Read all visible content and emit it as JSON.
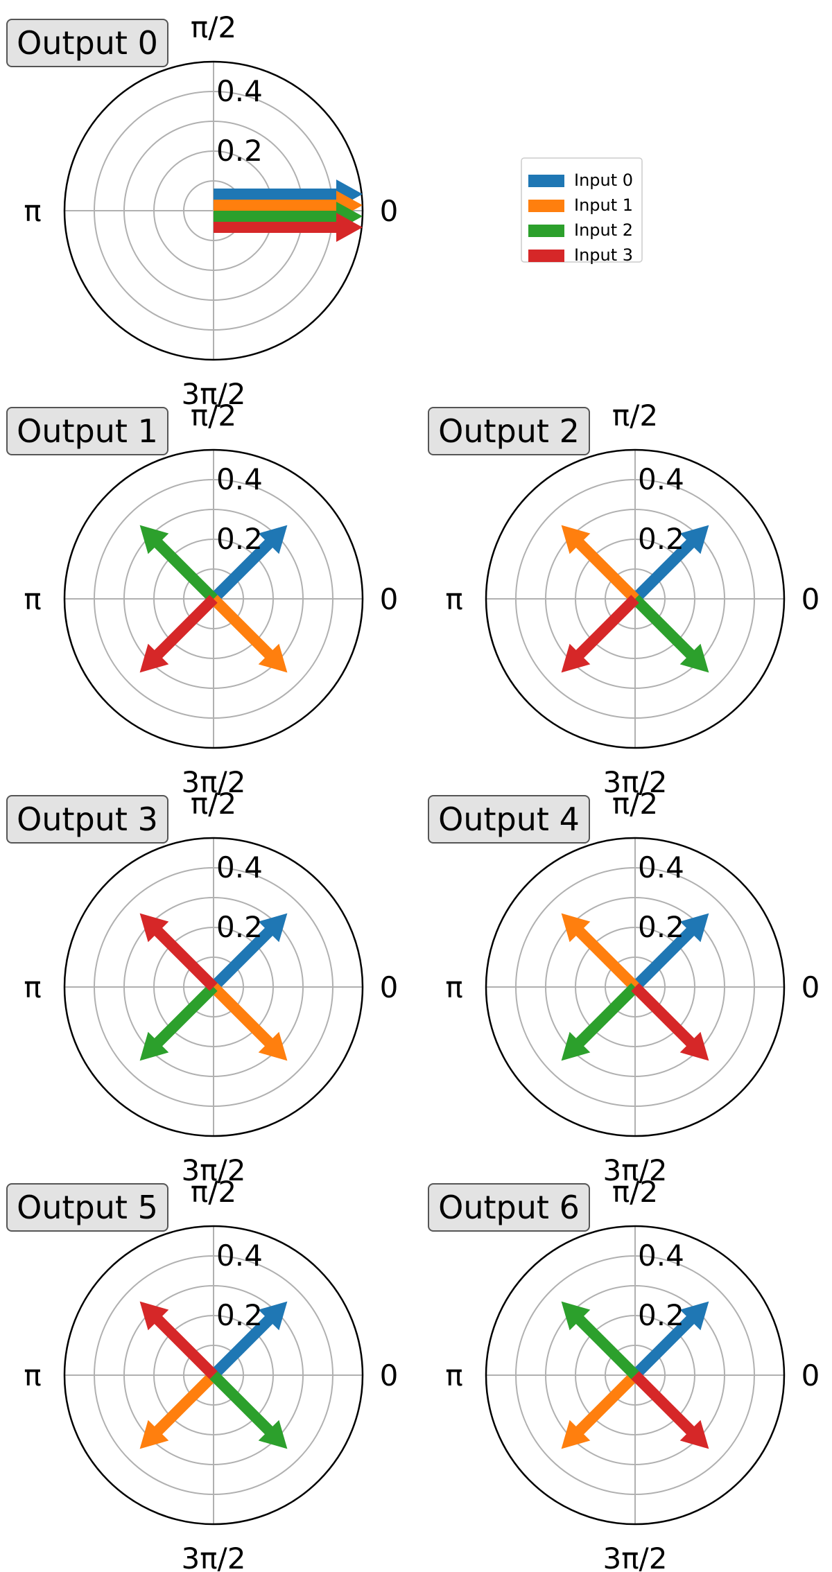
{
  "chart_data": {
    "type": "polar-arrows",
    "angle_ticks": [
      "0",
      "π/2",
      "π",
      "3π/2"
    ],
    "radial_ticks": [
      "0.2",
      "0.4"
    ],
    "rlim": [
      0,
      0.5
    ],
    "grid": true,
    "legend": {
      "placement": "right-of-first-panel",
      "entries": [
        {
          "label": "Input 0",
          "color": "#1f77b4"
        },
        {
          "label": "Input 1",
          "color": "#ff7f0e"
        },
        {
          "label": "Input 2",
          "color": "#2ca02c"
        },
        {
          "label": "Input 3",
          "color": "#d62728"
        }
      ]
    },
    "panels": [
      {
        "title": "Output 0",
        "vectors": [
          {
            "series": 0,
            "angle_deg": 0,
            "magnitude": 0.5
          },
          {
            "series": 1,
            "angle_deg": 0,
            "magnitude": 0.5
          },
          {
            "series": 2,
            "angle_deg": 0,
            "magnitude": 0.5
          },
          {
            "series": 3,
            "angle_deg": 0,
            "magnitude": 0.5
          }
        ]
      },
      {
        "title": "Output 1",
        "vectors": [
          {
            "series": 0,
            "angle_deg": 45,
            "magnitude": 0.35
          },
          {
            "series": 1,
            "angle_deg": 315,
            "magnitude": 0.35
          },
          {
            "series": 2,
            "angle_deg": 135,
            "magnitude": 0.35
          },
          {
            "series": 3,
            "angle_deg": 225,
            "magnitude": 0.35
          }
        ]
      },
      {
        "title": "Output 2",
        "vectors": [
          {
            "series": 0,
            "angle_deg": 45,
            "magnitude": 0.35
          },
          {
            "series": 1,
            "angle_deg": 135,
            "magnitude": 0.35
          },
          {
            "series": 2,
            "angle_deg": 315,
            "magnitude": 0.35
          },
          {
            "series": 3,
            "angle_deg": 225,
            "magnitude": 0.35
          }
        ]
      },
      {
        "title": "Output 3",
        "vectors": [
          {
            "series": 0,
            "angle_deg": 45,
            "magnitude": 0.35
          },
          {
            "series": 1,
            "angle_deg": 315,
            "magnitude": 0.35
          },
          {
            "series": 2,
            "angle_deg": 225,
            "magnitude": 0.35
          },
          {
            "series": 3,
            "angle_deg": 135,
            "magnitude": 0.35
          }
        ]
      },
      {
        "title": "Output 4",
        "vectors": [
          {
            "series": 0,
            "angle_deg": 45,
            "magnitude": 0.35
          },
          {
            "series": 1,
            "angle_deg": 135,
            "magnitude": 0.35
          },
          {
            "series": 2,
            "angle_deg": 225,
            "magnitude": 0.35
          },
          {
            "series": 3,
            "angle_deg": 315,
            "magnitude": 0.35
          }
        ]
      },
      {
        "title": "Output 5",
        "vectors": [
          {
            "series": 0,
            "angle_deg": 45,
            "magnitude": 0.35
          },
          {
            "series": 1,
            "angle_deg": 225,
            "magnitude": 0.35
          },
          {
            "series": 2,
            "angle_deg": 315,
            "magnitude": 0.35
          },
          {
            "series": 3,
            "angle_deg": 135,
            "magnitude": 0.35
          }
        ]
      },
      {
        "title": "Output 6",
        "vectors": [
          {
            "series": 0,
            "angle_deg": 45,
            "magnitude": 0.35
          },
          {
            "series": 1,
            "angle_deg": 225,
            "magnitude": 0.35
          },
          {
            "series": 2,
            "angle_deg": 135,
            "magnitude": 0.35
          },
          {
            "series": 3,
            "angle_deg": 315,
            "magnitude": 0.35
          }
        ]
      }
    ]
  }
}
